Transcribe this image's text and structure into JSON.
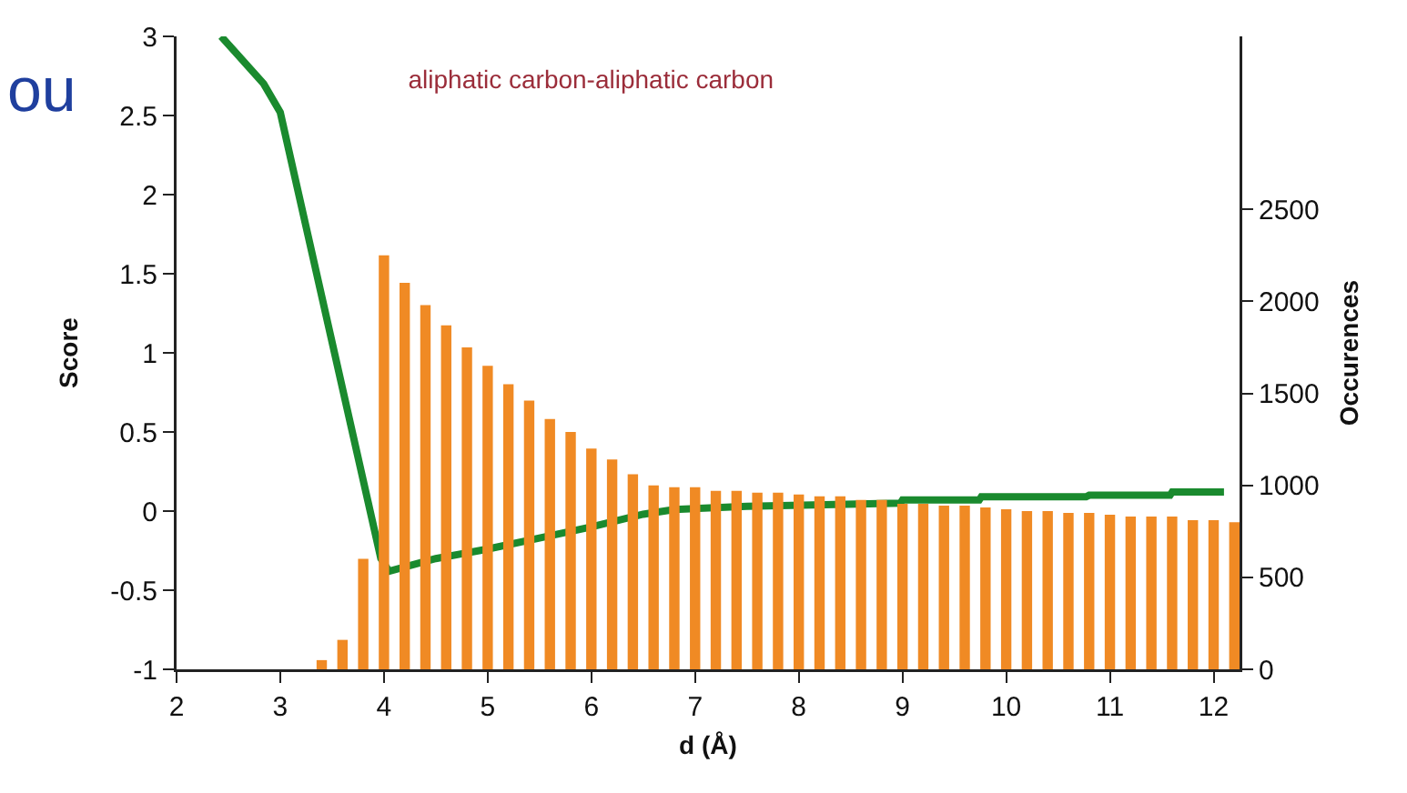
{
  "chart_data": {
    "type": "line",
    "title": "aliphatic carbon-aliphatic carbon",
    "xlabel": "d (Å)",
    "ylabel": "Score",
    "y2label": "Occurences",
    "annotations": [
      "ou"
    ],
    "series": [
      {
        "color": "#1a8a2e",
        "x": [
          2.43,
          2.84,
          3.0,
          3.97,
          4.05,
          4.5,
          5.0,
          5.5,
          6.0,
          6.5,
          6.8,
          7.5,
          8.98,
          9.0,
          9.74,
          9.76,
          10.77,
          10.8,
          11.58,
          11.6,
          12.1
        ],
        "values": [
          3.0,
          2.7,
          2.52,
          -0.3,
          -0.38,
          -0.3,
          -0.24,
          -0.17,
          -0.1,
          -0.02,
          0.01,
          0.03,
          0.05,
          0.07,
          0.07,
          0.09,
          0.09,
          0.1,
          0.1,
          0.12,
          0.12
        ]
      },
      {
        "type": "bar",
        "axis": "y2",
        "color": "#f08a24",
        "x": [
          3.4,
          3.6,
          3.8,
          4.0,
          4.2,
          4.4,
          4.6,
          4.8,
          5.0,
          5.2,
          5.4,
          5.6,
          5.8,
          6.0,
          6.2,
          6.4,
          6.6,
          6.8,
          7.0,
          7.2,
          7.4,
          7.6,
          7.8,
          8.0,
          8.2,
          8.4,
          8.6,
          8.8,
          9.0,
          9.2,
          9.4,
          9.6,
          9.8,
          10.0,
          10.2,
          10.4,
          10.6,
          10.8,
          11.0,
          11.2,
          11.4,
          11.6,
          11.8,
          12.0,
          12.2
        ],
        "values": [
          50,
          160,
          600,
          2250,
          2100,
          1980,
          1870,
          1750,
          1650,
          1550,
          1460,
          1360,
          1290,
          1200,
          1140,
          1060,
          1000,
          990,
          990,
          970,
          970,
          960,
          960,
          950,
          940,
          940,
          920,
          920,
          900,
          900,
          890,
          890,
          880,
          870,
          860,
          860,
          850,
          850,
          840,
          830,
          830,
          830,
          810,
          810,
          800
        ]
      }
    ],
    "xlim": [
      2,
      12.25
    ],
    "xticks": [
      2,
      3,
      4,
      5,
      6,
      7,
      8,
      9,
      10,
      11,
      12
    ],
    "ylim": [
      -1,
      3
    ],
    "yticks": [
      -1,
      -0.5,
      0,
      0.5,
      1,
      1.5,
      2,
      2.5,
      3
    ],
    "y2lim": [
      0,
      3440
    ],
    "y2ticks": [
      0,
      500,
      1000,
      1500,
      2000,
      2500
    ],
    "grid": false
  }
}
